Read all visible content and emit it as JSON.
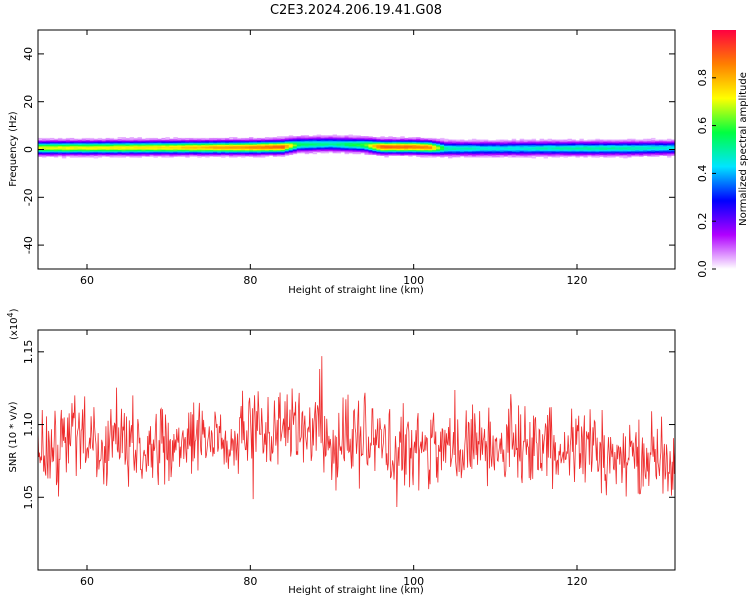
{
  "title": "C2E3.2024.206.19.41.G08",
  "chart_data": [
    {
      "type": "heatmap",
      "xlabel": "Height of straight line (km)",
      "ylabel": "Frequency (Hz)",
      "xlim": [
        54,
        132
      ],
      "ylim": [
        -50,
        50
      ],
      "xticks": [
        60,
        80,
        100,
        120
      ],
      "yticks": [
        -40,
        -20,
        0,
        20,
        40
      ],
      "colorbar": {
        "label": "Normalized spectral amplitude",
        "range": [
          0,
          1
        ],
        "ticks": [
          0.0,
          0.2,
          0.4,
          0.6,
          0.8
        ],
        "tick_labels": [
          "0.0",
          "0.2",
          "0.4",
          "0.6",
          "0.8"
        ],
        "colormap": [
          "#ffffff",
          "#b000ff",
          "#0000ff",
          "#00e5ff",
          "#00ff40",
          "#ffff00",
          "#ff7f00",
          "#ff0040"
        ]
      },
      "band": {
        "x": [
          54,
          60,
          70,
          80,
          84,
          86,
          90,
          94,
          96,
          100,
          102,
          104,
          110,
          120,
          126,
          132
        ],
        "center": [
          0.8,
          0.8,
          0.9,
          1.0,
          1.2,
          2.2,
          2.4,
          2.0,
          1.2,
          1.2,
          1.0,
          0.5,
          0.5,
          0.6,
          0.6,
          0.8
        ],
        "peak": [
          0.7,
          0.72,
          0.75,
          0.85,
          0.9,
          0.55,
          0.5,
          0.6,
          0.9,
          0.88,
          0.85,
          0.5,
          0.45,
          0.5,
          0.5,
          0.45
        ]
      }
    },
    {
      "type": "line",
      "xlabel": "Height of straight line (km)",
      "ylabel": "SNR (10 * v/v)",
      "scale_label": "(x10",
      "scale_exp": "4",
      "scale_close": ")",
      "xlim": [
        54,
        132
      ],
      "ylim": [
        1.0,
        1.165
      ],
      "xticks": [
        60,
        80,
        100,
        120
      ],
      "yticks": [
        1.05,
        1.1,
        1.15
      ],
      "ytick_labels": [
        "1.05",
        "1.10",
        "1.15"
      ],
      "color": "#ee2b2b",
      "series": [
        {
          "x": [
            54,
            56,
            58,
            60,
            62,
            64,
            66,
            68,
            70,
            72,
            74,
            76,
            78,
            80,
            82,
            84,
            86,
            88,
            90,
            92,
            94,
            96,
            98,
            100,
            102,
            104,
            106,
            108,
            110,
            112,
            114,
            116,
            118,
            120,
            122,
            124,
            126,
            128,
            130,
            132
          ],
          "values": [
            1.085,
            1.08,
            1.09,
            1.085,
            1.085,
            1.09,
            1.085,
            1.09,
            1.085,
            1.09,
            1.095,
            1.09,
            1.09,
            1.095,
            1.095,
            1.1,
            1.095,
            1.1,
            1.085,
            1.09,
            1.09,
            1.085,
            1.085,
            1.08,
            1.085,
            1.08,
            1.09,
            1.09,
            1.085,
            1.09,
            1.085,
            1.085,
            1.09,
            1.085,
            1.085,
            1.08,
            1.075,
            1.08,
            1.08,
            1.08
          ]
        }
      ]
    }
  ]
}
